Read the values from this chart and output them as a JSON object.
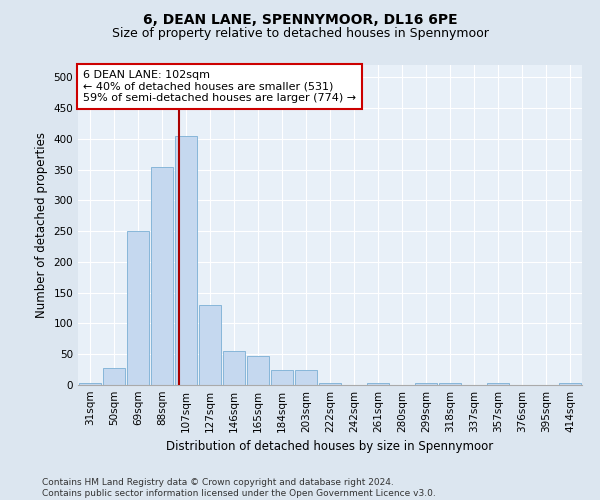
{
  "title": "6, DEAN LANE, SPENNYMOOR, DL16 6PE",
  "subtitle": "Size of property relative to detached houses in Spennymoor",
  "xlabel": "Distribution of detached houses by size in Spennymoor",
  "ylabel": "Number of detached properties",
  "categories": [
    "31sqm",
    "50sqm",
    "69sqm",
    "88sqm",
    "107sqm",
    "127sqm",
    "146sqm",
    "165sqm",
    "184sqm",
    "203sqm",
    "222sqm",
    "242sqm",
    "261sqm",
    "280sqm",
    "299sqm",
    "318sqm",
    "337sqm",
    "357sqm",
    "376sqm",
    "395sqm",
    "414sqm"
  ],
  "values": [
    3,
    28,
    250,
    355,
    405,
    130,
    55,
    47,
    25,
    25,
    3,
    0,
    3,
    0,
    3,
    3,
    0,
    3,
    0,
    0,
    3
  ],
  "bar_color": "#c5d8ef",
  "bar_edgecolor": "#7aafd4",
  "vline_x_index": 3,
  "vline_x_offset": 0.72,
  "vline_color": "#aa0000",
  "annotation_text": "6 DEAN LANE: 102sqm\n← 40% of detached houses are smaller (531)\n59% of semi-detached houses are larger (774) →",
  "annotation_box_facecolor": "#ffffff",
  "annotation_box_edgecolor": "#cc0000",
  "ylim": [
    0,
    520
  ],
  "yticks": [
    0,
    50,
    100,
    150,
    200,
    250,
    300,
    350,
    400,
    450,
    500
  ],
  "bg_color": "#dce6f0",
  "plot_bg_color": "#e8f0f8",
  "footer": "Contains HM Land Registry data © Crown copyright and database right 2024.\nContains public sector information licensed under the Open Government Licence v3.0.",
  "title_fontsize": 10,
  "subtitle_fontsize": 9,
  "xlabel_fontsize": 8.5,
  "ylabel_fontsize": 8.5,
  "tick_fontsize": 7.5,
  "footer_fontsize": 6.5,
  "annot_fontsize": 8
}
